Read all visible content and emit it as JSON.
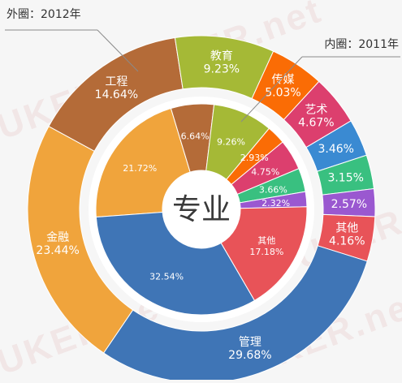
{
  "watermark_text": "UKER.net",
  "chart_data": {
    "type": "pie",
    "center_label": "专业",
    "rings": [
      {
        "name": "外圈：2012年",
        "categories": [
          "金融",
          "工程",
          "教育",
          "传媒",
          "艺术",
          "",
          "",
          "",
          "其他",
          "管理"
        ],
        "values": [
          23.44,
          14.64,
          9.23,
          5.03,
          4.67,
          3.46,
          3.15,
          2.57,
          4.16,
          29.68
        ],
        "labels": [
          "23.44%",
          "14.64%",
          "9.23%",
          "5.03%",
          "4.67%",
          "3.46%",
          "3.15%",
          "2.57%",
          "4.16%",
          "29.68%"
        ],
        "colors": [
          "#f0a43c",
          "#b46b38",
          "#a5b936",
          "#fa6c05",
          "#dc3f6e",
          "#3a8ad2",
          "#39c080",
          "#9a58d0",
          "#e85358",
          "#3f75b6"
        ]
      },
      {
        "name": "内圈：2011年",
        "categories": [
          "",
          "",
          "",
          "",
          "",
          "",
          "",
          "其他",
          ""
        ],
        "values": [
          21.72,
          6.64,
          9.26,
          2.93,
          4.75,
          3.66,
          2.32,
          17.18,
          32.54
        ],
        "labels": [
          "21.72%",
          "6.64%",
          "9.26%",
          "2.93%",
          "4.75%",
          "3.66%",
          "2.32%",
          "17.18%",
          "32.54%"
        ],
        "colors": [
          "#f0a43c",
          "#b46b38",
          "#a5b936",
          "#fa6c05",
          "#dc3f6e",
          "#39c080",
          "#9a58d0",
          "#e85358",
          "#3f75b6"
        ]
      }
    ]
  }
}
